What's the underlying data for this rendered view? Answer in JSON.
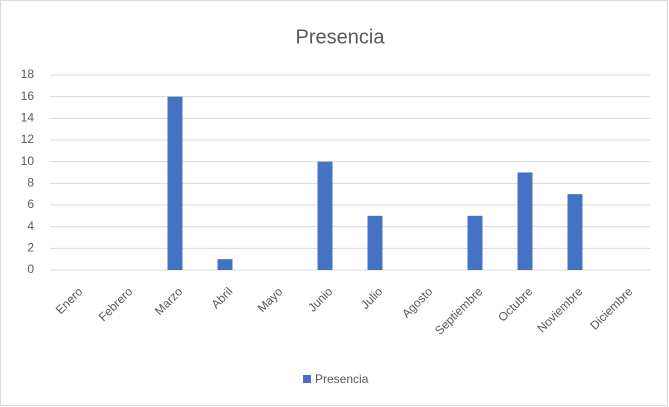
{
  "chart_data": {
    "type": "bar",
    "title": "Presencia",
    "categories": [
      "Enero",
      "Febrero",
      "Marzo",
      "Abril",
      "Mayo",
      "Junio",
      "Julio",
      "Agosto",
      "Septiembre",
      "Octubre",
      "Noviembre",
      "Diciembre"
    ],
    "series": [
      {
        "name": "Presencia",
        "color": "#4472c4",
        "values": [
          0,
          0,
          16,
          1,
          0,
          10,
          5,
          0,
          5,
          9,
          7,
          0
        ]
      }
    ],
    "ylim": [
      0,
      18
    ],
    "yticks": [
      0,
      2,
      4,
      6,
      8,
      10,
      12,
      14,
      16,
      18
    ],
    "grid": true,
    "legend": "bottom"
  }
}
